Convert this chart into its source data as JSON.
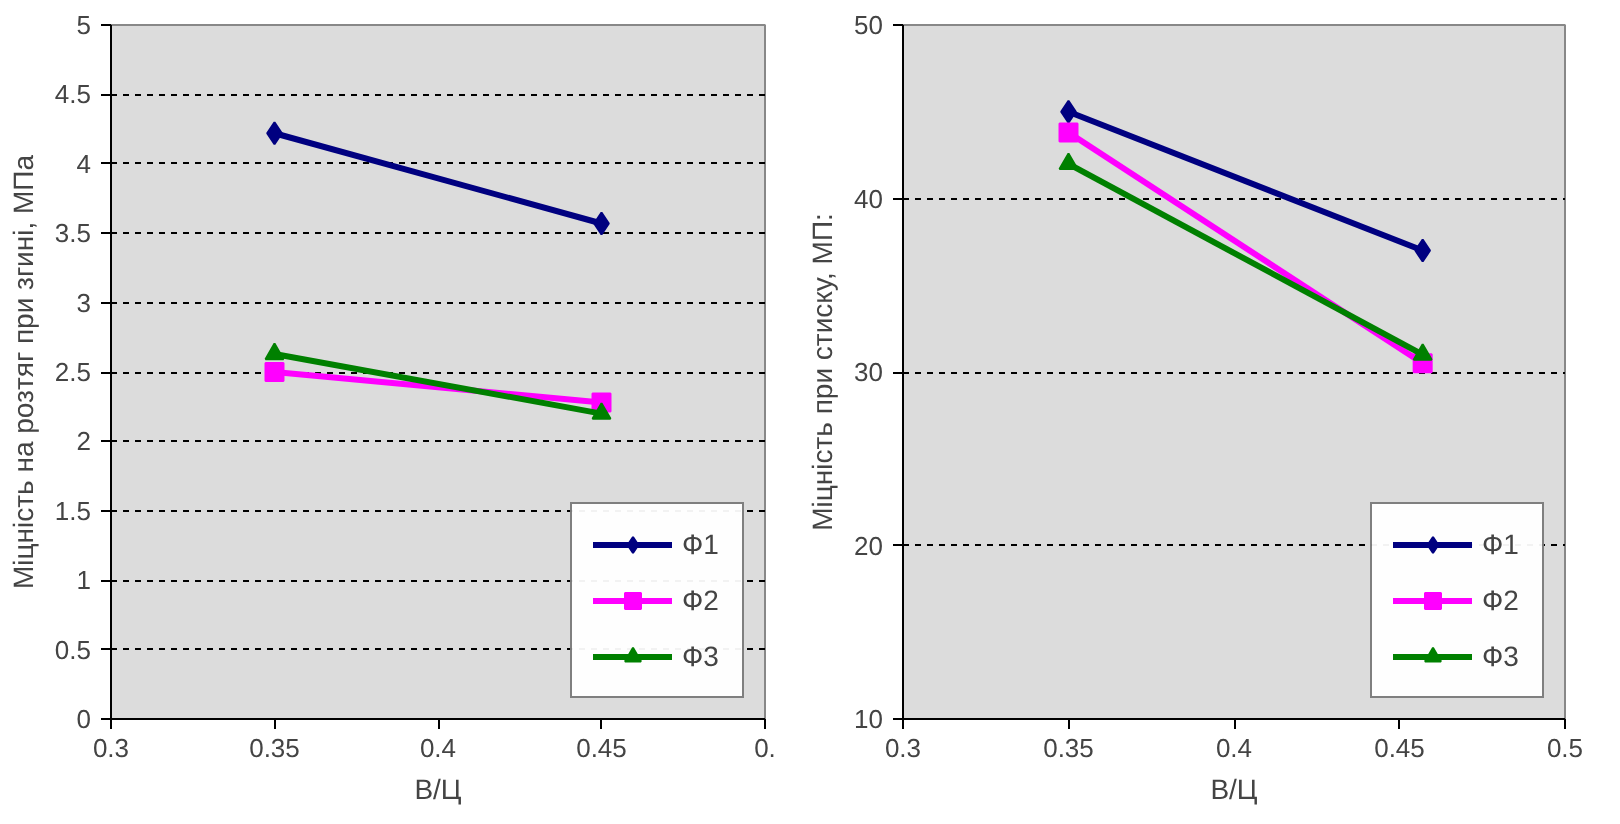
{
  "chart_data": [
    {
      "type": "line",
      "xlabel": "В/Ц",
      "ylabel": "Міцність на розтяг при згині, МПа",
      "xlim": [
        0.3,
        0.5
      ],
      "xticks": [
        0.3,
        0.35,
        0.4,
        0.45,
        {
          "value": 0.5,
          "label": "0."
        }
      ],
      "ylim": [
        0,
        5
      ],
      "yticks": [
        0,
        0.5,
        1,
        1.5,
        2,
        2.5,
        3,
        3.5,
        4,
        4.5,
        5
      ],
      "grid": "y",
      "legend": "bottom right",
      "series": [
        {
          "name": "Ф1",
          "color": "#000080",
          "marker": "diamond",
          "x": [
            0.35,
            0.45
          ],
          "values": [
            4.22,
            3.57
          ]
        },
        {
          "name": "Ф2",
          "color": "#ff00ff",
          "marker": "square",
          "x": [
            0.35,
            0.45
          ],
          "values": [
            2.5,
            2.28
          ]
        },
        {
          "name": "Ф3",
          "color": "#008000",
          "marker": "triangle",
          "x": [
            0.35,
            0.45
          ],
          "values": [
            2.63,
            2.2
          ]
        }
      ]
    },
    {
      "type": "line",
      "xlabel": "В/Ц",
      "ylabel": "Міцність при стиску, МП:",
      "xlim": [
        0.3,
        0.5
      ],
      "xticks": [
        0.3,
        0.35,
        0.4,
        0.45,
        0.5
      ],
      "ylim": [
        10,
        50
      ],
      "yticks": [
        10,
        20,
        30,
        40,
        50
      ],
      "grid": "y",
      "legend": "bottom right",
      "series": [
        {
          "name": "Ф1",
          "color": "#000080",
          "marker": "diamond",
          "x": [
            0.35,
            0.457
          ],
          "values": [
            45,
            37
          ]
        },
        {
          "name": "Ф2",
          "color": "#ff00ff",
          "marker": "square",
          "x": [
            0.35,
            0.457
          ],
          "values": [
            43.8,
            30.5
          ]
        },
        {
          "name": "Ф3",
          "color": "#008000",
          "marker": "triangle",
          "x": [
            0.35,
            0.457
          ],
          "values": [
            42,
            31
          ]
        }
      ]
    }
  ]
}
